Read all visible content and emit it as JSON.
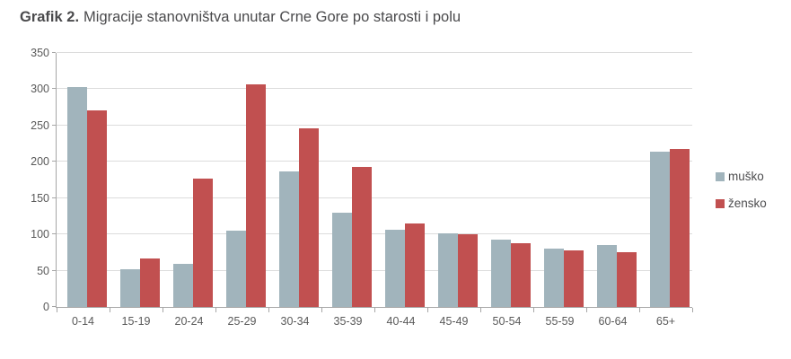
{
  "title": {
    "prefix": "Grafik 2.",
    "text": "Migracije stanovništva unutar Crne Gore po starosti i polu"
  },
  "colors": {
    "musko": "#A1B4BC",
    "zensko": "#C15050",
    "gridline": "#DCDCDC",
    "axis": "#A6A6A6",
    "tick_label": "#595959",
    "title_text": "#4A4A4C"
  },
  "legend": {
    "position": "right",
    "items": [
      {
        "label": "muško",
        "color": "#A1B4BC"
      },
      {
        "label": "žensko",
        "color": "#C15050"
      }
    ]
  },
  "chart_data": {
    "type": "bar",
    "title": "Grafik 2. Migracije stanovništva unutar Crne Gore po starosti i polu",
    "xlabel": "",
    "ylabel": "",
    "categories": [
      "0-14",
      "15-19",
      "20-24",
      "25-29",
      "30-34",
      "35-39",
      "40-44",
      "45-49",
      "50-54",
      "55-59",
      "60-64",
      "65+"
    ],
    "series": [
      {
        "name": "muško",
        "color": "#A1B4BC",
        "values": [
          303,
          52,
          60,
          105,
          187,
          130,
          106,
          102,
          93,
          81,
          85,
          214
        ]
      },
      {
        "name": "žensko",
        "color": "#C15050",
        "values": [
          271,
          67,
          177,
          307,
          246,
          193,
          115,
          100,
          88,
          78,
          76,
          218
        ]
      }
    ],
    "ylim": [
      0,
      350
    ],
    "ytick_step": 50,
    "grid": true,
    "legend_position": "right"
  }
}
